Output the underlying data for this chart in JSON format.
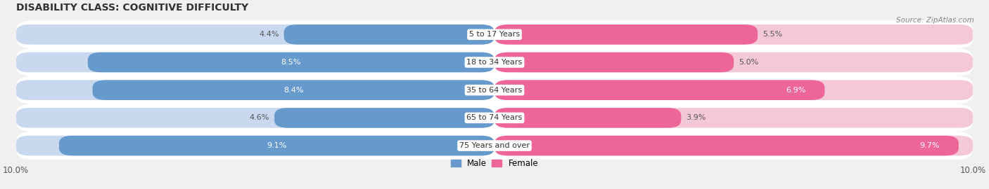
{
  "title": "DISABILITY CLASS: COGNITIVE DIFFICULTY",
  "source": "Source: ZipAtlas.com",
  "categories": [
    "5 to 17 Years",
    "18 to 34 Years",
    "35 to 64 Years",
    "65 to 74 Years",
    "75 Years and over"
  ],
  "male_values": [
    4.4,
    8.5,
    8.4,
    4.6,
    9.1
  ],
  "female_values": [
    5.5,
    5.0,
    6.9,
    3.9,
    9.7
  ],
  "max_val": 10.0,
  "male_bar_color": "#6699cc",
  "male_bg_color": "#c8d8ee",
  "female_bar_color": "#ee6699",
  "female_bg_color": "#f5c8d8",
  "row_bg_color": "#e8e8e8",
  "bg_color": "#f0f0f0",
  "white": "#ffffff",
  "axis_label_fontsize": 8.5,
  "title_fontsize": 10,
  "category_fontsize": 8,
  "value_fontsize": 8
}
